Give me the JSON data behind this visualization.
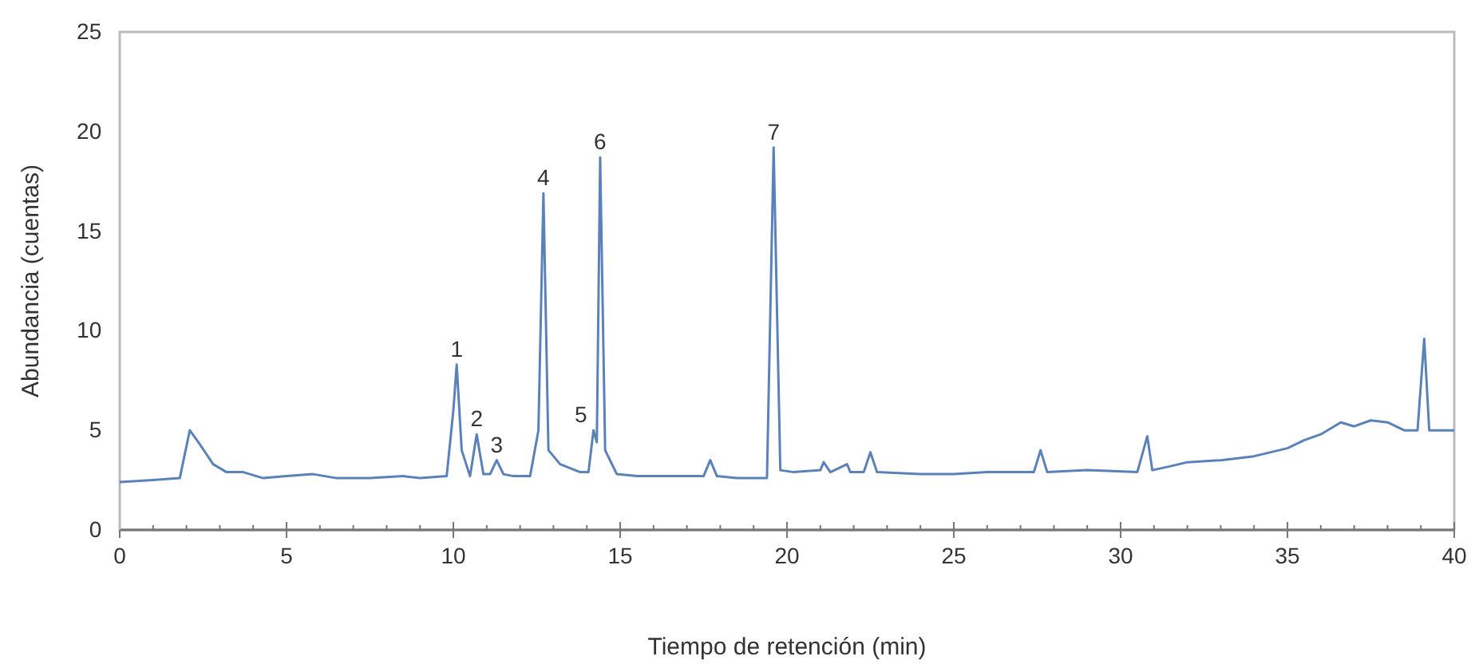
{
  "chart_data": {
    "type": "line",
    "xlabel": "Tiempo de retención (min)",
    "ylabel": "Abundancia (cuentas)",
    "xlim": [
      0,
      40
    ],
    "ylim": [
      0,
      25
    ],
    "xticks": [
      0,
      {
        "value": 1,
        "label": null
      },
      {
        "value": 2,
        "label": null
      },
      {
        "value": 3,
        "label": null
      },
      {
        "value": 4,
        "label": null
      },
      5,
      {
        "value": 6,
        "label": null
      },
      {
        "value": 7,
        "label": null
      },
      {
        "value": 8,
        "label": null
      },
      {
        "value": 9,
        "label": null
      },
      10,
      {
        "value": 11,
        "label": null
      },
      {
        "value": 12,
        "label": null
      },
      {
        "value": 13,
        "label": null
      },
      {
        "value": 14,
        "label": null
      },
      15,
      {
        "value": 16,
        "label": null
      },
      {
        "value": 17,
        "label": null
      },
      {
        "value": 18,
        "label": null
      },
      {
        "value": 19,
        "label": null
      },
      20,
      {
        "value": 21,
        "label": null
      },
      {
        "value": 22,
        "label": null
      },
      {
        "value": 23,
        "label": null
      },
      {
        "value": 24,
        "label": null
      },
      25,
      {
        "value": 26,
        "label": null
      },
      {
        "value": 27,
        "label": null
      },
      {
        "value": 28,
        "label": null
      },
      {
        "value": 29,
        "label": null
      },
      30,
      {
        "value": 31,
        "label": null
      },
      {
        "value": 32,
        "label": null
      },
      {
        "value": 33,
        "label": null
      },
      {
        "value": 34,
        "label": null
      },
      35,
      {
        "value": 36,
        "label": null
      },
      {
        "value": 37,
        "label": null
      },
      {
        "value": 38,
        "label": null
      },
      {
        "value": 39,
        "label": null
      },
      40
    ],
    "yticks": [
      0,
      5,
      10,
      15,
      20,
      25
    ],
    "grid": false,
    "marker": "none",
    "line_style": "solid",
    "series": [
      {
        "color": "#5b82b8",
        "x": [
          0,
          1,
          1.8,
          2.1,
          2.4,
          2.8,
          3.2,
          3.7,
          4.3,
          5,
          5.8,
          6.5,
          7.5,
          8.5,
          9,
          9.8,
          10,
          10.1,
          10.25,
          10.5,
          10.7,
          10.9,
          11.1,
          11.3,
          11.5,
          11.8,
          12.3,
          12.55,
          12.7,
          12.85,
          13.2,
          13.8,
          14.05,
          14.2,
          14.3,
          14.4,
          14.55,
          14.9,
          15.5,
          16.5,
          17.5,
          17.7,
          17.9,
          18.5,
          19.4,
          19.6,
          19.8,
          20.2,
          21,
          21.1,
          21.3,
          21.8,
          21.9,
          22.3,
          22.5,
          22.7,
          24,
          25,
          26,
          27.4,
          27.6,
          27.8,
          29,
          30.5,
          30.8,
          30.95,
          31.5,
          32,
          33,
          34,
          35,
          35.5,
          36,
          36.6,
          37,
          37.5,
          38,
          38.5,
          38.9,
          39.1,
          39.25,
          39.6,
          40
        ],
        "values": [
          2.4,
          2.5,
          2.6,
          5.0,
          4.3,
          3.3,
          2.9,
          2.9,
          2.6,
          2.7,
          2.8,
          2.6,
          2.6,
          2.7,
          2.6,
          2.7,
          6,
          8.3,
          4,
          2.7,
          4.8,
          2.8,
          2.8,
          3.5,
          2.8,
          2.7,
          2.7,
          5,
          16.9,
          4,
          3.3,
          2.9,
          2.9,
          5.0,
          4.4,
          18.7,
          4,
          2.8,
          2.7,
          2.7,
          2.7,
          3.5,
          2.7,
          2.6,
          2.6,
          19.2,
          3.0,
          2.9,
          3.0,
          3.4,
          2.9,
          3.3,
          2.9,
          2.9,
          3.9,
          2.9,
          2.8,
          2.8,
          2.9,
          2.9,
          4.0,
          2.9,
          3.0,
          2.9,
          4.7,
          3.0,
          3.2,
          3.4,
          3.5,
          3.7,
          4.1,
          4.5,
          4.8,
          5.4,
          5.2,
          5.5,
          5.4,
          5.0,
          5.0,
          9.6,
          5.0,
          5.0,
          5.0
        ]
      }
    ],
    "annotations": [
      {
        "text": "1",
        "x": 10.1,
        "y": 8.3
      },
      {
        "text": "2",
        "x": 10.7,
        "y": 4.8
      },
      {
        "text": "3",
        "x": 11.3,
        "y": 3.5
      },
      {
        "text": "4",
        "x": 12.7,
        "y": 16.9
      },
      {
        "text": "5",
        "x": 14.2,
        "y": 5.0
      },
      {
        "text": "6",
        "x": 14.4,
        "y": 18.7
      },
      {
        "text": "7",
        "x": 19.6,
        "y": 19.2
      }
    ]
  }
}
